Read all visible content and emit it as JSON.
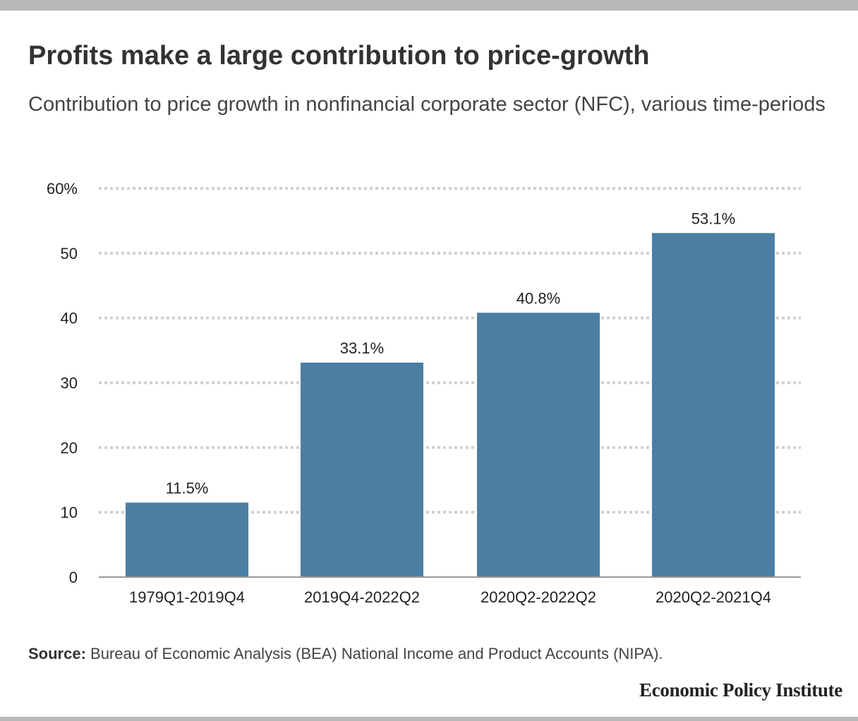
{
  "title": "Profits make a large contribution to price-growth",
  "subtitle": "Contribution to price growth in nonfinancial corporate sector (NFC), various time-periods",
  "source_label": "Source:",
  "source_text": " Bureau of Economic Analysis (BEA) National Income and Product Accounts (NIPA).",
  "brand": "Economic Policy Institute",
  "colors": {
    "bar": "#4a7fa3",
    "grid": "#d0d0d0",
    "axis": "#999999",
    "frame": "#b8b8b8"
  },
  "chart_data": {
    "type": "bar",
    "categories": [
      "1979Q1-2019Q4",
      "2019Q4-2022Q2",
      "2020Q2-2022Q2",
      "2020Q2-2021Q4"
    ],
    "values": [
      11.5,
      33.1,
      40.8,
      53.1
    ],
    "data_labels": [
      "11.5%",
      "33.1%",
      "40.8%",
      "53.1%"
    ],
    "y_ticks": [
      0,
      10,
      20,
      30,
      40,
      50,
      60
    ],
    "y_tick_labels": [
      "0",
      "10",
      "20",
      "30",
      "40",
      "50",
      "60%"
    ],
    "ylim": [
      0,
      60
    ],
    "grid": true
  }
}
